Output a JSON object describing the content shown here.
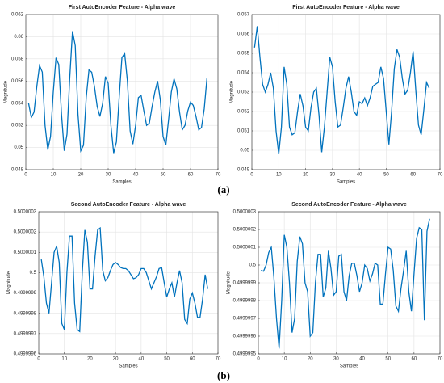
{
  "captions": [
    "(a)",
    "(b)"
  ],
  "chart_data": [
    {
      "type": "line",
      "title": "First AutoEncoder Feature - Alpha wave",
      "xlabel": "Samples",
      "ylabel": "Magnitude",
      "xlim": [
        0,
        70
      ],
      "xticks": [
        0,
        10,
        20,
        30,
        40,
        50,
        60,
        70
      ],
      "ylim": [
        0.048,
        0.062
      ],
      "yticks": [
        0.048,
        0.05,
        0.052,
        0.054,
        0.056,
        0.058,
        0.06,
        0.062
      ],
      "grid": true,
      "series": [
        {
          "color": "#0072bd",
          "x": [
            1,
            2,
            3,
            4,
            5,
            6,
            7,
            8,
            9,
            10,
            11,
            12,
            13,
            14,
            15,
            16,
            17,
            18,
            19,
            20,
            21,
            22,
            23,
            24,
            25,
            26,
            27,
            28,
            29,
            30,
            31,
            32,
            33,
            34,
            35,
            36,
            37,
            38,
            39,
            40,
            41,
            42,
            43,
            44,
            45,
            46,
            47,
            48,
            49,
            50,
            51,
            52,
            53,
            54,
            55,
            56,
            57,
            58,
            59,
            60,
            61,
            62,
            63,
            64,
            65,
            66
          ],
          "values": [
            0.054,
            0.0527,
            0.0532,
            0.0555,
            0.0574,
            0.0568,
            0.052,
            0.0498,
            0.051,
            0.055,
            0.0581,
            0.0575,
            0.053,
            0.0497,
            0.0512,
            0.0563,
            0.0605,
            0.0592,
            0.053,
            0.0497,
            0.0502,
            0.0545,
            0.057,
            0.0568,
            0.0555,
            0.0537,
            0.0528,
            0.054,
            0.0564,
            0.0558,
            0.052,
            0.0495,
            0.0505,
            0.0545,
            0.0581,
            0.0585,
            0.056,
            0.0515,
            0.0503,
            0.052,
            0.0545,
            0.0547,
            0.0533,
            0.052,
            0.0522,
            0.0537,
            0.055,
            0.056,
            0.0543,
            0.051,
            0.0502,
            0.0525,
            0.055,
            0.0562,
            0.0553,
            0.0532,
            0.0516,
            0.052,
            0.0533,
            0.0541,
            0.0538,
            0.0528,
            0.0516,
            0.0518,
            0.0535,
            0.0563
          ]
        }
      ]
    },
    {
      "type": "line",
      "title": "First AutoEncoder Feature - Alpha wave",
      "xlabel": "Samples",
      "ylabel": "Magnitude",
      "xlim": [
        0,
        70
      ],
      "xticks": [
        0,
        10,
        20,
        30,
        40,
        50,
        60,
        70
      ],
      "ylim": [
        0.049,
        0.057
      ],
      "yticks": [
        0.049,
        0.05,
        0.051,
        0.052,
        0.053,
        0.054,
        0.055,
        0.056,
        0.057
      ],
      "grid": true,
      "series": [
        {
          "color": "#0072bd",
          "x": [
            1,
            2,
            3,
            4,
            5,
            6,
            7,
            8,
            9,
            10,
            11,
            12,
            13,
            14,
            15,
            16,
            17,
            18,
            19,
            20,
            21,
            22,
            23,
            24,
            25,
            26,
            27,
            28,
            29,
            30,
            31,
            32,
            33,
            34,
            35,
            36,
            37,
            38,
            39,
            40,
            41,
            42,
            43,
            44,
            45,
            46,
            47,
            48,
            49,
            50,
            51,
            52,
            53,
            54,
            55,
            56,
            57,
            58,
            59,
            60,
            61,
            62,
            63,
            64,
            65,
            66
          ],
          "values": [
            0.0553,
            0.0564,
            0.0548,
            0.0534,
            0.053,
            0.0534,
            0.054,
            0.0532,
            0.051,
            0.0498,
            0.0512,
            0.0543,
            0.0534,
            0.0512,
            0.0508,
            0.0509,
            0.052,
            0.0529,
            0.0523,
            0.0512,
            0.051,
            0.0522,
            0.053,
            0.0532,
            0.0518,
            0.0499,
            0.0512,
            0.053,
            0.0548,
            0.0543,
            0.0525,
            0.0512,
            0.0513,
            0.0522,
            0.0532,
            0.0538,
            0.053,
            0.052,
            0.0518,
            0.0525,
            0.0524,
            0.0527,
            0.0523,
            0.0527,
            0.0533,
            0.0534,
            0.0535,
            0.0543,
            0.0537,
            0.052,
            0.0503,
            0.052,
            0.0542,
            0.0552,
            0.0548,
            0.0537,
            0.0529,
            0.0531,
            0.054,
            0.0551,
            0.0531,
            0.0513,
            0.0508,
            0.0521,
            0.0535,
            0.0532
          ]
        }
      ]
    },
    {
      "type": "line",
      "title": "Second AutoEncoder Feature - Alpha wave",
      "xlabel": "Samples",
      "ylabel": "Magnitude",
      "xlim": [
        0,
        70
      ],
      "xticks": [
        0,
        10,
        20,
        30,
        40,
        50,
        60,
        70
      ],
      "ylim": [
        0.4999996,
        0.5000003
      ],
      "yticks": [
        0.4999996,
        0.4999997,
        0.4999998,
        0.4999999,
        0.5,
        0.5000001,
        0.5000002,
        0.5000003
      ],
      "grid": true,
      "series": [
        {
          "color": "#0072bd",
          "x": [
            1,
            2,
            3,
            4,
            5,
            6,
            7,
            8,
            9,
            10,
            11,
            12,
            13,
            14,
            15,
            16,
            17,
            18,
            19,
            20,
            21,
            22,
            23,
            24,
            25,
            26,
            27,
            28,
            29,
            30,
            31,
            32,
            33,
            34,
            35,
            36,
            37,
            38,
            39,
            40,
            41,
            42,
            43,
            44,
            45,
            46,
            47,
            48,
            49,
            50,
            51,
            52,
            53,
            54,
            55,
            56,
            57,
            58,
            59,
            60,
            61,
            62,
            63,
            64,
            65,
            66
          ],
          "values": [
            0.500000065,
            0.49999998,
            0.49999985,
            0.4999998,
            0.49999995,
            0.5000001,
            0.50000013,
            0.50000005,
            0.49999975,
            0.49999972,
            0.5,
            0.50000018,
            0.50000018,
            0.49999985,
            0.49999972,
            0.49999971,
            0.5,
            0.50000021,
            0.50000015,
            0.49999992,
            0.49999992,
            0.50000008,
            0.50000021,
            0.50000022,
            0.50000001,
            0.49999996,
            0.499999975,
            0.50000001,
            0.50000004,
            0.50000005,
            0.50000004,
            0.500000025,
            0.50000002,
            0.50000002,
            0.50000001,
            0.49999999,
            0.49999997,
            0.499999975,
            0.49999999,
            0.50000002,
            0.50000002,
            0.5,
            0.49999996,
            0.49999992,
            0.49999995,
            0.49999998,
            0.50000002,
            0.500000025,
            0.49999995,
            0.49999988,
            0.49999992,
            0.49999995,
            0.49999988,
            0.49999995,
            0.50000001,
            0.49999995,
            0.49999977,
            0.49999975,
            0.49999987,
            0.4999999,
            0.49999985,
            0.49999978,
            0.49999978,
            0.49999987,
            0.49999999,
            0.49999992
          ]
        }
      ]
    },
    {
      "type": "line",
      "title": "Second AutoEncoder Feature - Alpha wave",
      "xlabel": "Samples",
      "ylabel": "Magnitude",
      "xlim": [
        0,
        70
      ],
      "xticks": [
        0,
        10,
        20,
        30,
        40,
        50,
        60,
        70
      ],
      "ylim": [
        0.4999995,
        0.5000003
      ],
      "yticks": [
        0.4999995,
        0.4999996,
        0.4999997,
        0.4999998,
        0.4999999,
        0.5,
        0.5000001,
        0.5000002,
        0.5000003
      ],
      "grid": true,
      "series": [
        {
          "color": "#0072bd",
          "x": [
            1,
            2,
            3,
            4,
            5,
            6,
            7,
            8,
            9,
            10,
            11,
            12,
            13,
            14,
            15,
            16,
            17,
            18,
            19,
            20,
            21,
            22,
            23,
            24,
            25,
            26,
            27,
            28,
            29,
            30,
            31,
            32,
            33,
            34,
            35,
            36,
            37,
            38,
            39,
            40,
            41,
            42,
            43,
            44,
            45,
            46,
            47,
            48,
            49,
            50,
            51,
            52,
            53,
            54,
            55,
            56,
            57,
            58,
            59,
            60,
            61,
            62,
            63,
            64,
            65,
            66
          ],
          "values": [
            0.49999997,
            0.499999965,
            0.5,
            0.50000007,
            0.5000001,
            0.49999993,
            0.4999997,
            0.49999953,
            0.4999998,
            0.50000017,
            0.5000001,
            0.4999999,
            0.49999962,
            0.4999997,
            0.50000002,
            0.50000016,
            0.50000012,
            0.4999999,
            0.49999985,
            0.4999996,
            0.49999962,
            0.4999999,
            0.50000006,
            0.50000006,
            0.49999982,
            0.49999987,
            0.50000008,
            0.49999998,
            0.49999983,
            0.49999985,
            0.50000005,
            0.50000006,
            0.49999985,
            0.4999998,
            0.49999994,
            0.50000001,
            0.50000001,
            0.49999994,
            0.49999985,
            0.4999999,
            0.5,
            0.49999998,
            0.49999991,
            0.49999995,
            0.50000001,
            0.5,
            0.49999978,
            0.49999978,
            0.49999995,
            0.5000001,
            0.50000009,
            0.49999997,
            0.49999977,
            0.49999974,
            0.49999987,
            0.49999997,
            0.50000008,
            0.49999985,
            0.49999974,
            0.49999995,
            0.50000015,
            0.50000021,
            0.5000002,
            0.49999969,
            0.50000019,
            0.50000026
          ]
        }
      ]
    }
  ]
}
